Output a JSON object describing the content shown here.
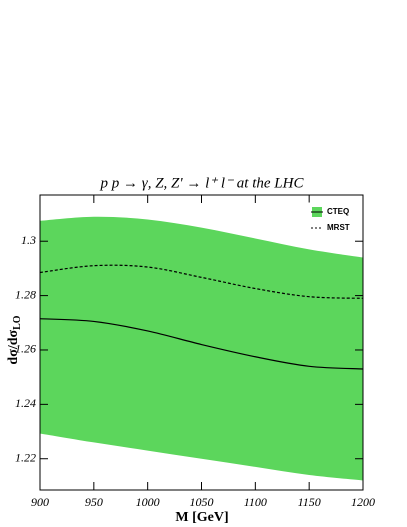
{
  "chart_data": {
    "type": "line",
    "title": "p p  → γ, Z, Z' → l⁺ l⁻ at the LHC",
    "x_label": "M [GeV]",
    "y_label": "dσ/dσ",
    "y_label_sub": "LO",
    "x": [
      900,
      950,
      1000,
      1050,
      1100,
      1150,
      1200
    ],
    "series": [
      {
        "name": "CTEQ",
        "color": "#5cd65c",
        "line_color": "#000000",
        "dash": false,
        "values": [
          1.2715,
          1.2705,
          1.267,
          1.262,
          1.2575,
          1.254,
          1.253
        ],
        "upper": [
          1.3075,
          1.309,
          1.308,
          1.305,
          1.301,
          1.297,
          1.294
        ],
        "lower": [
          1.2293,
          1.226,
          1.223,
          1.22,
          1.217,
          1.214,
          1.212
        ]
      },
      {
        "name": "MRST",
        "color": "#000000",
        "dash": true,
        "values": [
          1.2885,
          1.291,
          1.2905,
          1.2867,
          1.2826,
          1.2796,
          1.279
        ]
      }
    ],
    "xlim": [
      900,
      1200
    ],
    "xticks": [
      900,
      950,
      1000,
      1050,
      1100,
      1150,
      1200
    ],
    "ylim": [
      1.2085,
      1.317
    ],
    "yticks": [
      1.22,
      1.24,
      1.26,
      1.28,
      1.3
    ],
    "legend": "top-right"
  }
}
